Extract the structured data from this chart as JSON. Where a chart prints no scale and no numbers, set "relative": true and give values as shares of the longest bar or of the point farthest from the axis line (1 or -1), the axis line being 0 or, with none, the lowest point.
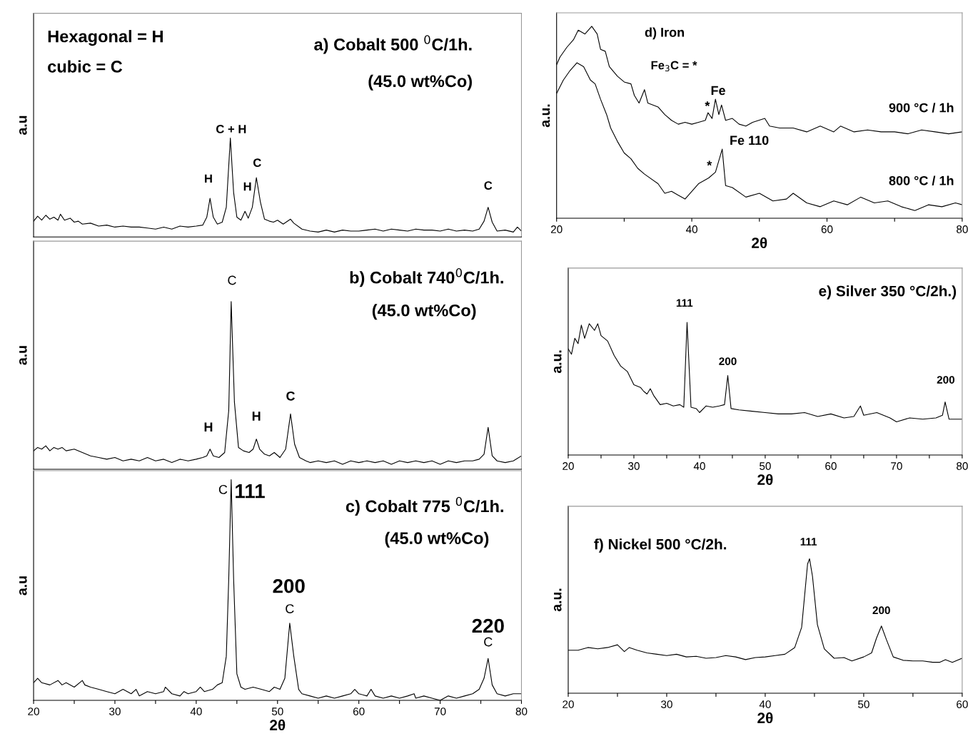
{
  "chart_data": [
    {
      "type": "line",
      "relative": true,
      "title": "a) Cobalt 500 $^{0}$C/1h.",
      "subtitle": "(45.0 wt%Co)",
      "ylabel": "a.u",
      "xlim": [
        20,
        80
      ],
      "tick_labels": false,
      "color": "#000000",
      "x": [
        20,
        20.5,
        21,
        21.5,
        22,
        22.5,
        23,
        23.3,
        23.8,
        24.5,
        25,
        25.5,
        26,
        27,
        28,
        29,
        30,
        31,
        32,
        33,
        34,
        35,
        36,
        37,
        38,
        39,
        40,
        40.8,
        41.3,
        41.7,
        42.1,
        42.6,
        43.2,
        43.7,
        44.2,
        44.6,
        45.0,
        45.5,
        46.0,
        46.4,
        46.9,
        47.4,
        47.9,
        48.4,
        49,
        49.5,
        50,
        50.7,
        51.6,
        52,
        53,
        54,
        55,
        56,
        57,
        58,
        59,
        60,
        61,
        62,
        63,
        64,
        65,
        66,
        67,
        68,
        69,
        70,
        71,
        72,
        73,
        74,
        74.8,
        75.4,
        75.9,
        76.4,
        77,
        78,
        79,
        79.5,
        80
      ],
      "values": [
        0.16,
        0.21,
        0.17,
        0.22,
        0.18,
        0.2,
        0.17,
        0.23,
        0.17,
        0.19,
        0.15,
        0.16,
        0.13,
        0.14,
        0.11,
        0.12,
        0.1,
        0.11,
        0.1,
        0.1,
        0.09,
        0.08,
        0.1,
        0.08,
        0.11,
        0.1,
        0.11,
        0.12,
        0.2,
        0.39,
        0.2,
        0.13,
        0.15,
        0.3,
        1.0,
        0.45,
        0.2,
        0.17,
        0.26,
        0.19,
        0.3,
        0.6,
        0.35,
        0.18,
        0.16,
        0.15,
        0.17,
        0.13,
        0.18,
        0.14,
        0.08,
        0.06,
        0.05,
        0.07,
        0.05,
        0.07,
        0.06,
        0.06,
        0.07,
        0.08,
        0.06,
        0.08,
        0.07,
        0.06,
        0.08,
        0.07,
        0.07,
        0.06,
        0.08,
        0.06,
        0.07,
        0.06,
        0.08,
        0.16,
        0.3,
        0.15,
        0.06,
        0.07,
        0.05,
        0.1,
        0.06
      ],
      "annotations": [
        "Hexagonal = H",
        "cubic = C",
        "C + H",
        "H",
        "H",
        "C",
        "C"
      ]
    },
    {
      "type": "line",
      "relative": true,
      "title": "b) Cobalt 740$^{0}$C/1h.",
      "subtitle": "(45.0 wt%Co)",
      "ylabel": "a.u",
      "xlim": [
        20,
        80
      ],
      "tick_labels": false,
      "color": "#000000",
      "x": [
        20,
        20.5,
        21,
        21.5,
        22,
        22.5,
        23,
        23.5,
        24,
        25,
        26,
        27,
        28,
        29,
        30,
        31,
        32,
        33,
        34,
        35,
        36,
        37,
        38,
        39,
        40,
        40.8,
        41.3,
        41.7,
        42.1,
        42.8,
        43.5,
        44.0,
        44.3,
        44.7,
        45.2,
        45.8,
        46.5,
        47.0,
        47.4,
        47.8,
        48.4,
        49,
        49.6,
        50.3,
        51.0,
        51.6,
        52.1,
        52.7,
        53.5,
        54,
        55,
        56,
        57,
        58,
        59,
        60,
        61,
        62,
        63,
        64,
        65,
        66,
        67,
        68,
        69,
        70,
        71,
        72,
        73,
        74,
        74.8,
        75.4,
        75.9,
        76.4,
        77,
        78,
        79,
        80
      ],
      "values": [
        0.11,
        0.13,
        0.12,
        0.14,
        0.11,
        0.13,
        0.12,
        0.13,
        0.11,
        0.12,
        0.1,
        0.08,
        0.07,
        0.06,
        0.07,
        0.05,
        0.06,
        0.05,
        0.07,
        0.05,
        0.06,
        0.04,
        0.06,
        0.05,
        0.06,
        0.07,
        0.08,
        0.12,
        0.08,
        0.07,
        0.1,
        0.35,
        1.0,
        0.4,
        0.13,
        0.11,
        0.1,
        0.12,
        0.18,
        0.12,
        0.09,
        0.08,
        0.1,
        0.07,
        0.12,
        0.33,
        0.15,
        0.07,
        0.05,
        0.04,
        0.05,
        0.04,
        0.05,
        0.03,
        0.05,
        0.04,
        0.05,
        0.04,
        0.05,
        0.03,
        0.05,
        0.04,
        0.05,
        0.04,
        0.05,
        0.03,
        0.05,
        0.04,
        0.05,
        0.05,
        0.06,
        0.09,
        0.25,
        0.08,
        0.05,
        0.04,
        0.05,
        0.08
      ],
      "annotations": [
        "C",
        "H",
        "H",
        "C"
      ]
    },
    {
      "type": "line",
      "relative": true,
      "title": "c) Cobalt 775 $^{0}$C/1h.",
      "subtitle": "(45.0 wt%Co)",
      "ylabel": "a.u",
      "xlabel": "2θ",
      "xlim": [
        20,
        80
      ],
      "tick_labels": "x",
      "color": "#000000",
      "xticks": [
        20,
        {
          "value": 25,
          "label": null
        },
        30,
        {
          "value": 35,
          "label": null
        },
        40,
        {
          "value": 45,
          "label": null
        },
        50,
        {
          "value": 55,
          "label": null
        },
        60,
        {
          "value": 65,
          "label": null
        },
        70,
        {
          "value": 75,
          "label": null
        },
        80
      ],
      "x": [
        20,
        20.5,
        21,
        22,
        23,
        23.5,
        24,
        25,
        26,
        26.3,
        27,
        28,
        29,
        30,
        31,
        32,
        32.6,
        33,
        34,
        35,
        36,
        36.2,
        37,
        38,
        38.5,
        39,
        40,
        40.5,
        41,
        42,
        42.6,
        43.2,
        43.7,
        44.0,
        44.3,
        44.6,
        45.0,
        45.5,
        46,
        47,
        48,
        49,
        49.6,
        50.3,
        50.9,
        51.5,
        52.0,
        52.6,
        53,
        54,
        55,
        56,
        57,
        58,
        59,
        59.5,
        60,
        61,
        61.5,
        62,
        63,
        64,
        65,
        66,
        66.8,
        67,
        68,
        69,
        70,
        71,
        72,
        73,
        74,
        74.8,
        75.4,
        75.9,
        76.4,
        77,
        78,
        79,
        80
      ],
      "values": [
        0.08,
        0.1,
        0.08,
        0.07,
        0.09,
        0.07,
        0.08,
        0.06,
        0.09,
        0.07,
        0.06,
        0.05,
        0.04,
        0.03,
        0.05,
        0.03,
        0.05,
        0.02,
        0.04,
        0.03,
        0.04,
        0.06,
        0.03,
        0.02,
        0.04,
        0.03,
        0.04,
        0.06,
        0.04,
        0.05,
        0.07,
        0.08,
        0.2,
        0.55,
        1.0,
        0.55,
        0.12,
        0.06,
        0.05,
        0.06,
        0.05,
        0.04,
        0.06,
        0.05,
        0.1,
        0.35,
        0.2,
        0.05,
        0.03,
        0.02,
        0.01,
        0.02,
        0.01,
        0.02,
        0.03,
        0.05,
        0.03,
        0.02,
        0.05,
        0.02,
        0.01,
        0.02,
        0.01,
        0.02,
        0.03,
        0.01,
        0.02,
        0.01,
        0.0,
        0.02,
        0.01,
        0.02,
        0.03,
        0.05,
        0.1,
        0.19,
        0.07,
        0.03,
        0.02,
        0.03,
        0.03
      ],
      "annotations": [
        "C",
        "111",
        "200",
        "C",
        "220",
        "C"
      ]
    },
    {
      "type": "line",
      "relative": true,
      "title": "d) Iron",
      "ylabel": "a.u.",
      "xlabel": "2θ",
      "xlim": [
        20,
        80
      ],
      "tick_labels": "x",
      "xticks": [
        20,
        {
          "value": 30,
          "label": null
        },
        40,
        {
          "value": 50,
          "label": null
        },
        60,
        {
          "value": 70,
          "label": null
        },
        80
      ],
      "series": [
        {
          "name": "900 °C / 1h",
          "color": "#000000",
          "x": [
            20,
            20.5,
            21.5,
            22.5,
            23.2,
            24.2,
            25.2,
            26,
            26.5,
            27.2,
            27.8,
            29,
            30,
            31,
            31.5,
            32.2,
            33,
            33.5,
            35,
            36,
            37,
            38,
            39,
            40,
            41,
            42,
            42.4,
            43,
            43.5,
            44,
            44.4,
            45,
            46,
            47,
            48,
            49,
            50.8,
            51.5,
            53,
            55,
            57,
            59,
            61,
            62,
            64,
            66,
            68,
            70,
            72,
            74,
            76,
            78,
            80
          ],
          "values": [
            0.8,
            0.84,
            0.89,
            0.93,
            0.98,
            0.96,
            1.0,
            0.96,
            0.88,
            0.87,
            0.79,
            0.74,
            0.71,
            0.7,
            0.64,
            0.6,
            0.67,
            0.6,
            0.58,
            0.54,
            0.51,
            0.49,
            0.5,
            0.49,
            0.5,
            0.51,
            0.55,
            0.52,
            0.62,
            0.54,
            0.59,
            0.51,
            0.52,
            0.49,
            0.48,
            0.5,
            0.52,
            0.48,
            0.47,
            0.47,
            0.45,
            0.48,
            0.45,
            0.48,
            0.45,
            0.46,
            0.45,
            0.45,
            0.44,
            0.46,
            0.45,
            0.44,
            0.45
          ]
        },
        {
          "name": "800 °C / 1h",
          "color": "#000000",
          "x": [
            20,
            21,
            22,
            23,
            24,
            25,
            25.7,
            26.5,
            27.4,
            28,
            29,
            30,
            31,
            32,
            33,
            35,
            36,
            37,
            38,
            39,
            40,
            41,
            42.5,
            43.5,
            44.5,
            45,
            46,
            48,
            50,
            52,
            54,
            55,
            57,
            59,
            61,
            63,
            65,
            67,
            69,
            71,
            73,
            75,
            77,
            79,
            80
          ],
          "values": [
            0.65,
            0.72,
            0.77,
            0.81,
            0.79,
            0.72,
            0.7,
            0.62,
            0.54,
            0.47,
            0.4,
            0.34,
            0.31,
            0.26,
            0.23,
            0.18,
            0.13,
            0.14,
            0.12,
            0.1,
            0.14,
            0.18,
            0.21,
            0.24,
            0.36,
            0.17,
            0.16,
            0.11,
            0.13,
            0.09,
            0.1,
            0.13,
            0.08,
            0.06,
            0.09,
            0.07,
            0.11,
            0.08,
            0.09,
            0.06,
            0.04,
            0.07,
            0.06,
            0.08,
            0.07
          ]
        }
      ],
      "annotations": [
        "Fe$_{3}$C = *",
        "Fe",
        "*",
        "Fe 110",
        "*"
      ]
    },
    {
      "type": "line",
      "relative": true,
      "title": "e) Silver 350 °C/2h.)",
      "ylabel": "a.u.",
      "xlabel": "2θ",
      "xlim": [
        20,
        80
      ],
      "tick_labels": "x",
      "color": "#000000",
      "xticks": [
        20,
        {
          "value": 25,
          "label": null
        },
        30,
        {
          "value": 35,
          "label": null
        },
        40,
        {
          "value": 45,
          "label": null
        },
        50,
        {
          "value": 55,
          "label": null
        },
        60,
        {
          "value": 65,
          "label": null
        },
        70,
        {
          "value": 75,
          "label": null
        },
        80
      ],
      "x": [
        20,
        20.5,
        21,
        21.5,
        22,
        22.5,
        23.2,
        24,
        24.5,
        25,
        26,
        27,
        28,
        29,
        30,
        31,
        31.5,
        32,
        32.5,
        33,
        34,
        35,
        36,
        37,
        37.6,
        38.1,
        38.7,
        39.5,
        40,
        41,
        42,
        43,
        43.8,
        44.3,
        44.8,
        46,
        48,
        50,
        52,
        54,
        56,
        58,
        60,
        62,
        63.5,
        64.5,
        65,
        67,
        69,
        70,
        72,
        74,
        76,
        77,
        77.4,
        78,
        80
      ],
      "values": [
        0.8,
        0.76,
        0.88,
        0.84,
        0.98,
        0.88,
        0.99,
        0.94,
        0.99,
        0.9,
        0.86,
        0.75,
        0.67,
        0.63,
        0.53,
        0.51,
        0.48,
        0.46,
        0.5,
        0.45,
        0.38,
        0.39,
        0.37,
        0.38,
        0.36,
        1.0,
        0.36,
        0.35,
        0.32,
        0.37,
        0.36,
        0.37,
        0.38,
        0.6,
        0.35,
        0.34,
        0.33,
        0.32,
        0.31,
        0.31,
        0.32,
        0.29,
        0.31,
        0.28,
        0.29,
        0.37,
        0.3,
        0.32,
        0.28,
        0.25,
        0.28,
        0.27,
        0.28,
        0.3,
        0.4,
        0.27,
        0.27
      ],
      "annotations": [
        "111",
        "200",
        "200"
      ]
    },
    {
      "type": "line",
      "relative": true,
      "title": "f) Nickel 500 °C/2h.",
      "ylabel": "a.u.",
      "xlabel": "2θ",
      "xlim": [
        20,
        60
      ],
      "tick_labels": "x",
      "color": "#000000",
      "xticks": [
        20,
        {
          "value": 25,
          "label": null
        },
        30,
        {
          "value": 35,
          "label": null
        },
        40,
        {
          "value": 45,
          "label": null
        },
        50,
        {
          "value": 55,
          "label": null
        },
        60
      ],
      "x": [
        20,
        21,
        22,
        23,
        24,
        25,
        25.7,
        26.2,
        27,
        28,
        29,
        30,
        31,
        32,
        33,
        34,
        35,
        36,
        37,
        38,
        39,
        40,
        41,
        42,
        43,
        43.7,
        44.3,
        44.5,
        44.8,
        45.3,
        46,
        47,
        48,
        48.8,
        50,
        50.8,
        51.3,
        51.8,
        52.3,
        53,
        54,
        55,
        56,
        57,
        57.7,
        58.3,
        59,
        60
      ],
      "values": [
        0.32,
        0.32,
        0.34,
        0.33,
        0.34,
        0.36,
        0.31,
        0.34,
        0.32,
        0.3,
        0.29,
        0.28,
        0.29,
        0.27,
        0.275,
        0.26,
        0.265,
        0.28,
        0.27,
        0.25,
        0.265,
        0.27,
        0.28,
        0.29,
        0.34,
        0.49,
        0.96,
        1.0,
        0.87,
        0.51,
        0.33,
        0.26,
        0.265,
        0.24,
        0.27,
        0.3,
        0.41,
        0.5,
        0.4,
        0.27,
        0.245,
        0.24,
        0.24,
        0.23,
        0.23,
        0.25,
        0.23,
        0.26
      ],
      "annotations": [
        "111",
        "200"
      ]
    }
  ]
}
